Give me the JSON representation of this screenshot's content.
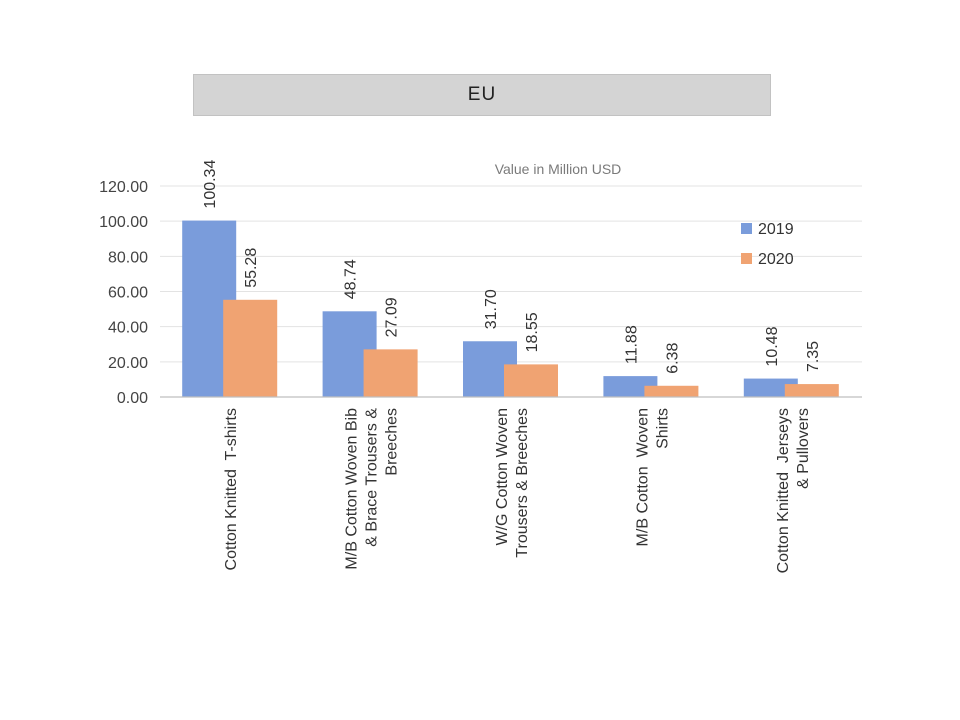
{
  "header": {
    "title": "EU"
  },
  "chart_data": {
    "type": "bar",
    "title": "EU",
    "subtitle": "Value in Million USD",
    "xlabel": "",
    "ylabel": "",
    "ylim": [
      0,
      120
    ],
    "yticks": [
      "0.00",
      "20.00",
      "40.00",
      "60.00",
      "80.00",
      "100.00",
      "120.00"
    ],
    "grid": true,
    "legend_position": "top-right",
    "categories": [
      [
        "Cotton Knitted  T-shirts"
      ],
      [
        "M/B Cotton Woven Bib",
        "& Brace Trousers &",
        "Breeches"
      ],
      [
        "W/G Cotton Woven",
        "Trousers & Breeches"
      ],
      [
        "M/B Cotton  Woven",
        "Shirts"
      ],
      [
        "Cotton Knitted  Jerseys",
        "& Pullovers"
      ]
    ],
    "series": [
      {
        "name": "2019",
        "color": "#7a9cdb",
        "values": [
          100.34,
          48.74,
          31.7,
          11.88,
          10.48
        ],
        "labels": [
          "100.34",
          "48.74",
          "31.70",
          "11.88",
          "10.48"
        ]
      },
      {
        "name": "2020",
        "color": "#f0a372",
        "values": [
          55.28,
          27.09,
          18.55,
          6.38,
          7.35
        ],
        "labels": [
          "55.28",
          "27.09",
          "18.55",
          "6.38",
          "7.35"
        ]
      }
    ]
  }
}
